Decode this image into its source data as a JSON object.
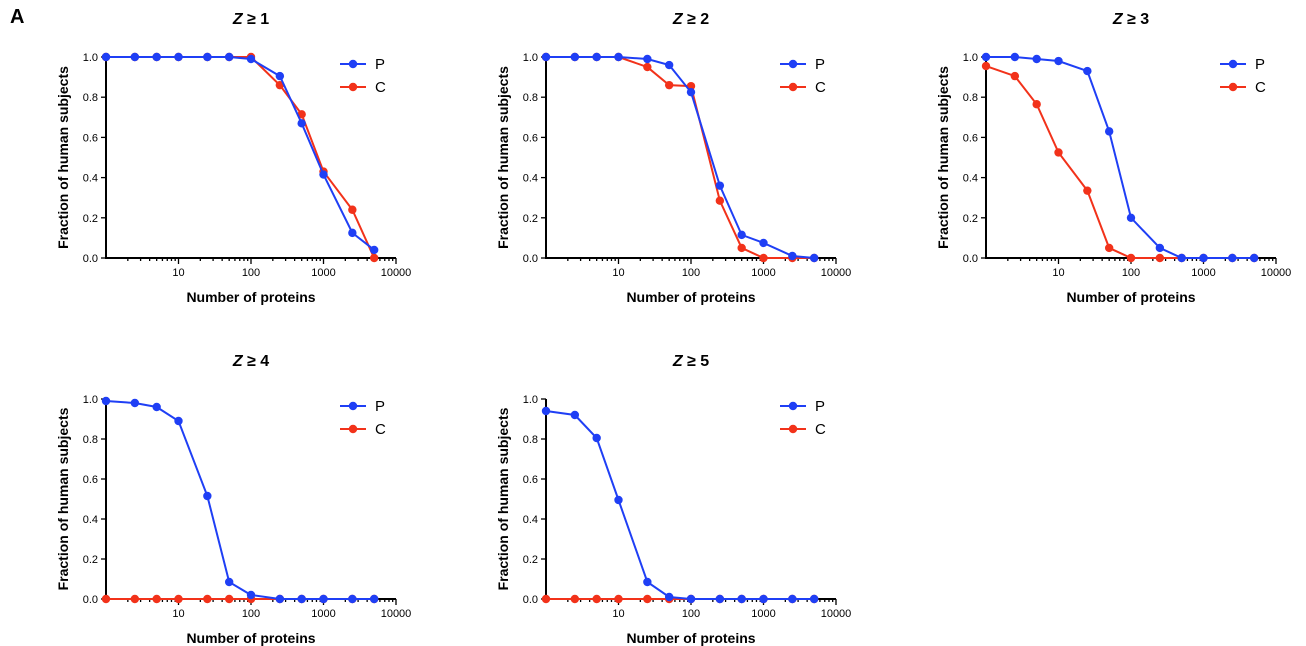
{
  "panel_label": "A",
  "colors": {
    "P": "#1f3ff5",
    "C": "#f2321a"
  },
  "chart_data": [
    {
      "type": "line",
      "title": "Z ≥ 1",
      "xlabel": "Number of proteins",
      "ylabel": "Fraction of human subjects",
      "xscale": "log",
      "xlim": [
        1,
        10000
      ],
      "ylim": [
        0,
        1.0
      ],
      "xticklabels": [
        "10",
        "100",
        "1000",
        "10000"
      ],
      "yticklabels": [
        "0.0",
        "0.2",
        "0.4",
        "0.6",
        "0.8",
        "1.0"
      ],
      "legend_position": "top-right",
      "x": [
        1,
        2.5,
        5,
        10,
        25,
        50,
        100,
        250,
        500,
        1000,
        2500,
        5000
      ],
      "series": [
        {
          "name": "P",
          "values": [
            1.0,
            1.0,
            1.0,
            1.0,
            1.0,
            1.0,
            0.99,
            0.905,
            0.67,
            0.415,
            0.125,
            0.04
          ]
        },
        {
          "name": "C",
          "values": [
            1.0,
            1.0,
            1.0,
            1.0,
            1.0,
            1.0,
            1.0,
            0.86,
            0.715,
            0.43,
            0.24,
            0.0
          ]
        }
      ]
    },
    {
      "type": "line",
      "title": "Z ≥ 2",
      "xlabel": "Number of proteins",
      "ylabel": "Fraction of human subjects",
      "xscale": "log",
      "xlim": [
        1,
        10000
      ],
      "ylim": [
        0,
        1.0
      ],
      "xticklabels": [
        "10",
        "100",
        "1000",
        "10000"
      ],
      "yticklabels": [
        "0.0",
        "0.2",
        "0.4",
        "0.6",
        "0.8",
        "1.0"
      ],
      "legend_position": "top-right",
      "x": [
        1,
        2.5,
        5,
        10,
        25,
        50,
        100,
        250,
        500,
        1000,
        2500,
        5000
      ],
      "series": [
        {
          "name": "P",
          "values": [
            1.0,
            1.0,
            1.0,
            1.0,
            0.99,
            0.96,
            0.825,
            0.36,
            0.115,
            0.075,
            0.01,
            0.0
          ]
        },
        {
          "name": "C",
          "values": [
            1.0,
            1.0,
            1.0,
            1.0,
            0.95,
            0.86,
            0.855,
            0.285,
            0.05,
            0.0,
            0.0,
            0.0
          ]
        }
      ]
    },
    {
      "type": "line",
      "title": "Z ≥ 3",
      "xlabel": "Number of proteins",
      "ylabel": "Fraction of human subjects",
      "xscale": "log",
      "xlim": [
        1,
        10000
      ],
      "ylim": [
        0,
        1.0
      ],
      "xticklabels": [
        "10",
        "100",
        "1000",
        "10000"
      ],
      "yticklabels": [
        "0.0",
        "0.2",
        "0.4",
        "0.6",
        "0.8",
        "1.0"
      ],
      "legend_position": "top-right",
      "x": [
        1,
        2.5,
        5,
        10,
        25,
        50,
        100,
        250,
        500,
        1000,
        2500,
        5000
      ],
      "series": [
        {
          "name": "P",
          "values": [
            1.0,
            1.0,
            0.99,
            0.98,
            0.93,
            0.63,
            0.2,
            0.05,
            0.0,
            0.0,
            0.0,
            0.0
          ]
        },
        {
          "name": "C",
          "values": [
            0.955,
            0.905,
            0.765,
            0.525,
            0.335,
            0.05,
            0.0,
            0.0,
            0.0,
            0.0,
            0.0,
            0.0
          ]
        }
      ]
    },
    {
      "type": "line",
      "title": "Z ≥ 4",
      "xlabel": "Number of proteins",
      "ylabel": "Fraction of human subjects",
      "xscale": "log",
      "xlim": [
        1,
        10000
      ],
      "ylim": [
        0,
        1.0
      ],
      "xticklabels": [
        "10",
        "100",
        "1000",
        "10000"
      ],
      "yticklabels": [
        "0.0",
        "0.2",
        "0.4",
        "0.6",
        "0.8",
        "1.0"
      ],
      "legend_position": "top-right",
      "x": [
        1,
        2.5,
        5,
        10,
        25,
        50,
        100,
        250,
        500,
        1000,
        2500,
        5000
      ],
      "series": [
        {
          "name": "P",
          "values": [
            0.99,
            0.98,
            0.96,
            0.89,
            0.515,
            0.085,
            0.02,
            0.0,
            0.0,
            0.0,
            0.0,
            0.0
          ]
        },
        {
          "name": "C",
          "values": [
            0.0,
            0.0,
            0.0,
            0.0,
            0.0,
            0.0,
            0.0,
            0.0,
            0.0,
            0.0,
            0.0,
            0.0
          ]
        }
      ]
    },
    {
      "type": "line",
      "title": "Z ≥ 5",
      "xlabel": "Number of proteins",
      "ylabel": "Fraction of human subjects",
      "xscale": "log",
      "xlim": [
        1,
        10000
      ],
      "ylim": [
        0,
        1.0
      ],
      "xticklabels": [
        "10",
        "100",
        "1000",
        "10000"
      ],
      "yticklabels": [
        "0.0",
        "0.2",
        "0.4",
        "0.6",
        "0.8",
        "1.0"
      ],
      "legend_position": "top-right",
      "x": [
        1,
        2.5,
        5,
        10,
        25,
        50,
        100,
        250,
        500,
        1000,
        2500,
        5000
      ],
      "series": [
        {
          "name": "P",
          "values": [
            0.94,
            0.92,
            0.805,
            0.495,
            0.085,
            0.01,
            0.0,
            0.0,
            0.0,
            0.0,
            0.0,
            0.0
          ]
        },
        {
          "name": "C",
          "values": [
            0.0,
            0.0,
            0.0,
            0.0,
            0.0,
            0.0,
            0.0,
            0.0,
            0.0,
            0.0,
            0.0,
            0.0
          ]
        }
      ]
    }
  ]
}
